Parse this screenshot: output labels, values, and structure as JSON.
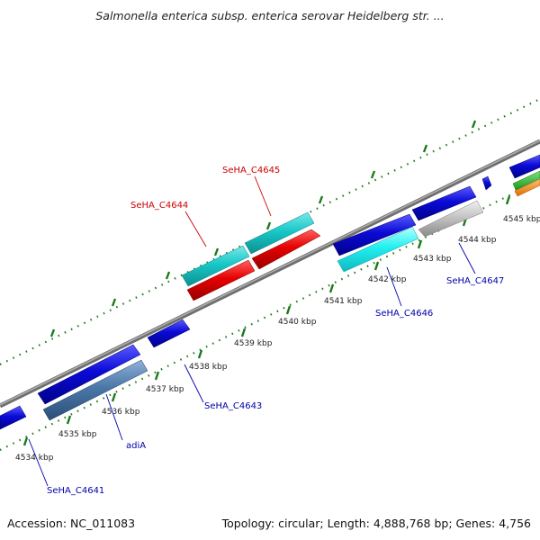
{
  "header": {
    "title": "Salmonella enterica subsp. enterica serovar Heidelberg str. ..."
  },
  "footer": {
    "accession": "Accession: NC_011083",
    "summary": "Topology: circular; Length: 4,888,768 bp; Genes: 4,756"
  },
  "colors": {
    "backbone": "#8c8c8c",
    "tick": "#1a7a1a",
    "dot": "#1a7a1a",
    "blue_gene": "#0a0ad6",
    "cyan_gene": "#18c8c8",
    "red_gene": "#e60000",
    "steel_gene": "#4a78a8",
    "gray_gene": "#b8b8b8",
    "green_gene": "#22aa22",
    "orange_gene": "#ff8c00",
    "label_red": "#cc0000",
    "label_blue": "#0000aa"
  },
  "ruler": {
    "ticks": [
      "4534 kbp",
      "4535 kbp",
      "4536 kbp",
      "4537 kbp",
      "4538 kbp",
      "4539 kbp",
      "4540 kbp",
      "4541 kbp",
      "4542 kbp",
      "4543 kbp",
      "4544 kbp",
      "4545 kbp"
    ]
  },
  "gene_labels": {
    "c4645": "SeHA_C4645",
    "c4644": "SeHA_C4644",
    "c4647": "SeHA_C4647",
    "c4646": "SeHA_C4646",
    "c4643": "SeHA_C4643",
    "adia": "adiA",
    "c4641": "SeHA_C4641"
  }
}
